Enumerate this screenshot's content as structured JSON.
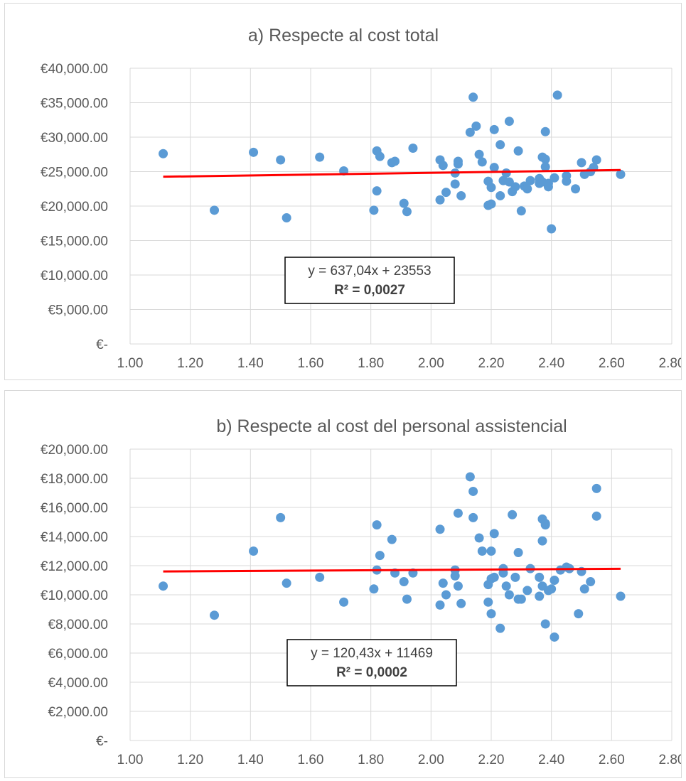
{
  "chart_data": [
    {
      "type": "scatter",
      "title": "a) Respecte al cost total",
      "xlim": [
        1.0,
        2.8
      ],
      "ylim": [
        0,
        40000
      ],
      "x_ticks": [
        "1.00",
        "1.20",
        "1.40",
        "1.60",
        "1.80",
        "2.00",
        "2.20",
        "2.40",
        "2.60",
        "2.80"
      ],
      "y_ticks": [
        "€-",
        "€5,000.00",
        "€10,000.00",
        "€15,000.00",
        "€20,000.00",
        "€25,000.00",
        "€30,000.00",
        "€35,000.00",
        "€40,000.00"
      ],
      "grid": true,
      "marker_color": "#5b9bd5",
      "trend_color": "#ff0000",
      "trendline": {
        "slope": 637.04,
        "intercept": 23553,
        "x_range": [
          1.11,
          2.63
        ]
      },
      "equation": "y = 637,04x + 23553",
      "r2": "R² = 0,0027",
      "points": [
        [
          1.11,
          27600
        ],
        [
          1.28,
          19400
        ],
        [
          1.41,
          27800
        ],
        [
          1.5,
          26700
        ],
        [
          1.52,
          18300
        ],
        [
          1.63,
          27100
        ],
        [
          1.71,
          25100
        ],
        [
          1.81,
          19400
        ],
        [
          1.82,
          28000
        ],
        [
          1.82,
          22200
        ],
        [
          1.83,
          27200
        ],
        [
          1.87,
          26300
        ],
        [
          1.88,
          26500
        ],
        [
          1.91,
          20400
        ],
        [
          1.92,
          19200
        ],
        [
          1.94,
          28400
        ],
        [
          2.03,
          20900
        ],
        [
          2.03,
          26700
        ],
        [
          2.04,
          25900
        ],
        [
          2.05,
          22000
        ],
        [
          2.08,
          23200
        ],
        [
          2.08,
          24800
        ],
        [
          2.09,
          26100
        ],
        [
          2.09,
          26500
        ],
        [
          2.1,
          21500
        ],
        [
          2.13,
          30700
        ],
        [
          2.14,
          35800
        ],
        [
          2.15,
          31600
        ],
        [
          2.16,
          27500
        ],
        [
          2.17,
          26400
        ],
        [
          2.19,
          20100
        ],
        [
          2.19,
          23600
        ],
        [
          2.2,
          22700
        ],
        [
          2.2,
          20300
        ],
        [
          2.21,
          31100
        ],
        [
          2.21,
          25600
        ],
        [
          2.23,
          21500
        ],
        [
          2.23,
          28900
        ],
        [
          2.24,
          23700
        ],
        [
          2.25,
          24800
        ],
        [
          2.26,
          23500
        ],
        [
          2.26,
          32300
        ],
        [
          2.27,
          22100
        ],
        [
          2.28,
          22800
        ],
        [
          2.29,
          28000
        ],
        [
          2.3,
          19300
        ],
        [
          2.31,
          22900
        ],
        [
          2.32,
          22500
        ],
        [
          2.33,
          23700
        ],
        [
          2.36,
          23300
        ],
        [
          2.36,
          24000
        ],
        [
          2.37,
          27100
        ],
        [
          2.37,
          23500
        ],
        [
          2.38,
          30800
        ],
        [
          2.38,
          26800
        ],
        [
          2.38,
          25700
        ],
        [
          2.39,
          22800
        ],
        [
          2.39,
          23300
        ],
        [
          2.4,
          16700
        ],
        [
          2.41,
          24100
        ],
        [
          2.42,
          36100
        ],
        [
          2.45,
          24400
        ],
        [
          2.45,
          23600
        ],
        [
          2.48,
          22500
        ],
        [
          2.5,
          26300
        ],
        [
          2.51,
          24600
        ],
        [
          2.53,
          25000
        ],
        [
          2.54,
          25600
        ],
        [
          2.55,
          26700
        ],
        [
          2.63,
          24600
        ]
      ]
    },
    {
      "type": "scatter",
      "title": "b) Respecte al cost del personal assistencial",
      "xlim": [
        1.0,
        2.8
      ],
      "ylim": [
        0,
        20000
      ],
      "x_ticks": [
        "1.00",
        "1.20",
        "1.40",
        "1.60",
        "1.80",
        "2.00",
        "2.20",
        "2.40",
        "2.60",
        "2.80"
      ],
      "y_ticks": [
        "€-",
        "€2,000.00",
        "€4,000.00",
        "€6,000.00",
        "€8,000.00",
        "€10,000.00",
        "€12,000.00",
        "€14,000.00",
        "€16,000.00",
        "€18,000.00",
        "€20,000.00"
      ],
      "grid": true,
      "marker_color": "#5b9bd5",
      "trend_color": "#ff0000",
      "trendline": {
        "slope": 120.43,
        "intercept": 11469,
        "x_range": [
          1.11,
          2.63
        ]
      },
      "equation": "y = 120,43x + 11469",
      "r2": "R² = 0,0002",
      "points": [
        [
          1.11,
          10600
        ],
        [
          1.28,
          8600
        ],
        [
          1.41,
          13000
        ],
        [
          1.5,
          15300
        ],
        [
          1.52,
          10800
        ],
        [
          1.63,
          11200
        ],
        [
          1.71,
          9500
        ],
        [
          1.81,
          10400
        ],
        [
          1.82,
          14800
        ],
        [
          1.82,
          11700
        ],
        [
          1.83,
          12700
        ],
        [
          1.87,
          13800
        ],
        [
          1.88,
          11500
        ],
        [
          1.91,
          10900
        ],
        [
          1.92,
          9700
        ],
        [
          1.94,
          11500
        ],
        [
          2.03,
          9300
        ],
        [
          2.03,
          14500
        ],
        [
          2.04,
          10800
        ],
        [
          2.05,
          10000
        ],
        [
          2.08,
          11300
        ],
        [
          2.08,
          11700
        ],
        [
          2.09,
          15600
        ],
        [
          2.09,
          10600
        ],
        [
          2.1,
          9400
        ],
        [
          2.13,
          18100
        ],
        [
          2.14,
          17100
        ],
        [
          2.14,
          15300
        ],
        [
          2.16,
          13900
        ],
        [
          2.17,
          13000
        ],
        [
          2.19,
          10700
        ],
        [
          2.19,
          9500
        ],
        [
          2.2,
          11100
        ],
        [
          2.2,
          13000
        ],
        [
          2.2,
          8700
        ],
        [
          2.21,
          14200
        ],
        [
          2.21,
          11200
        ],
        [
          2.23,
          7700
        ],
        [
          2.24,
          11500
        ],
        [
          2.24,
          11800
        ],
        [
          2.25,
          10600
        ],
        [
          2.26,
          10000
        ],
        [
          2.27,
          15500
        ],
        [
          2.28,
          11200
        ],
        [
          2.29,
          9700
        ],
        [
          2.29,
          12900
        ],
        [
          2.3,
          9700
        ],
        [
          2.32,
          10300
        ],
        [
          2.33,
          11800
        ],
        [
          2.36,
          11200
        ],
        [
          2.36,
          9900
        ],
        [
          2.37,
          13700
        ],
        [
          2.37,
          10600
        ],
        [
          2.37,
          15200
        ],
        [
          2.38,
          14800
        ],
        [
          2.38,
          14900
        ],
        [
          2.38,
          8000
        ],
        [
          2.39,
          10300
        ],
        [
          2.4,
          10400
        ],
        [
          2.41,
          7100
        ],
        [
          2.41,
          11000
        ],
        [
          2.43,
          11700
        ],
        [
          2.45,
          11900
        ],
        [
          2.46,
          11800
        ],
        [
          2.49,
          8700
        ],
        [
          2.5,
          11600
        ],
        [
          2.51,
          10400
        ],
        [
          2.53,
          10900
        ],
        [
          2.55,
          17300
        ],
        [
          2.55,
          15400
        ],
        [
          2.63,
          9900
        ]
      ]
    }
  ]
}
